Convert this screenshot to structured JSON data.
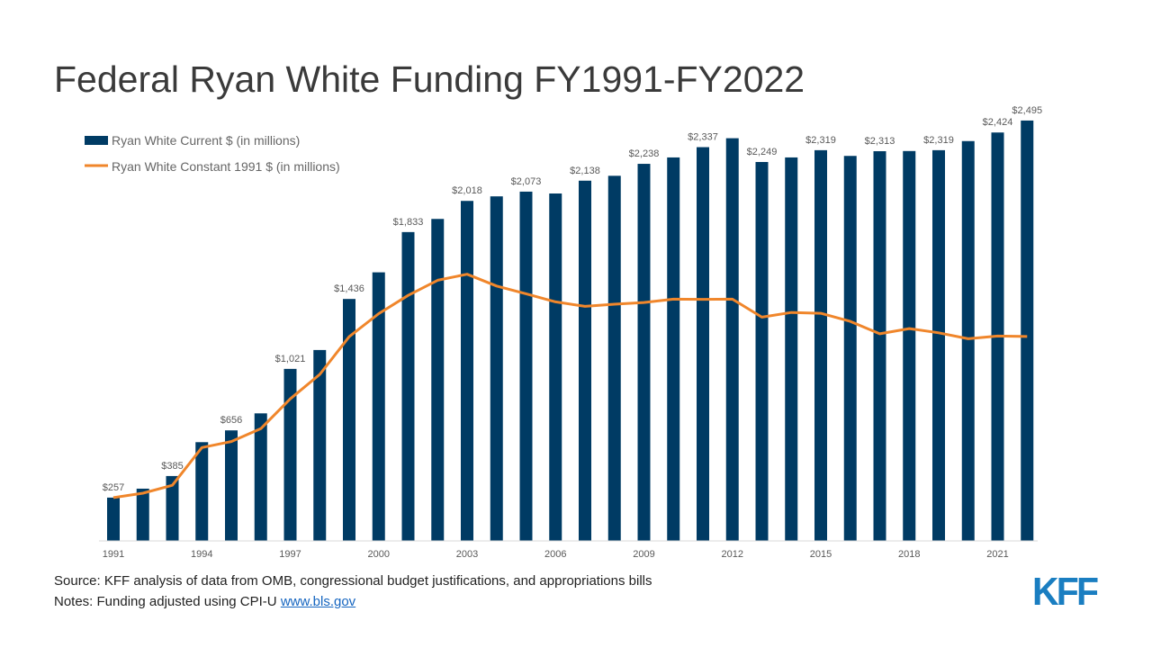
{
  "title": "Federal Ryan White Funding FY1991-FY2022",
  "source_text": "Source: KFF analysis of data from OMB, congressional budget justifications, and appropriations bills",
  "notes_prefix": "Notes: Funding adjusted using CPI-U ",
  "notes_link": "www.bls.gov",
  "logo_text": "KFF",
  "colors": {
    "bar": "#003b64",
    "line": "#f0862b",
    "logo": "#1a7ec1"
  },
  "chart_data": {
    "type": "bar",
    "categories": [
      "1991",
      "1992",
      "1993",
      "1994",
      "1995",
      "1996",
      "1997",
      "1998",
      "1999",
      "2000",
      "2001",
      "2002",
      "2003",
      "2004",
      "2005",
      "2006",
      "2007",
      "2008",
      "2009",
      "2010",
      "2011",
      "2012",
      "2013",
      "2014",
      "2015",
      "2016",
      "2017",
      "2018",
      "2019",
      "2020",
      "2021",
      "2022"
    ],
    "x_tick_labels": [
      "1991",
      "",
      "",
      "1994",
      "",
      "",
      "1997",
      "",
      "",
      "2000",
      "",
      "",
      "2003",
      "",
      "",
      "2006",
      "",
      "",
      "2009",
      "",
      "",
      "2012",
      "",
      "",
      "2015",
      "",
      "",
      "2018",
      "",
      "",
      "2021",
      ""
    ],
    "series": [
      {
        "name": "Ryan White Current $ (in millions)",
        "type": "bar",
        "values": [
          257,
          310,
          385,
          586,
          656,
          757,
          1021,
          1133,
          1436,
          1594,
          1833,
          1911,
          2018,
          2045,
          2073,
          2062,
          2138,
          2167,
          2238,
          2276,
          2337,
          2390,
          2249,
          2276,
          2319,
          2285,
          2313,
          2314,
          2319,
          2373,
          2424,
          2495
        ]
      },
      {
        "name": "Ryan White Constant 1991 $ (in millions)",
        "type": "line",
        "values": [
          257,
          283,
          330,
          554,
          590,
          666,
          843,
          988,
          1212,
          1349,
          1457,
          1547,
          1583,
          1513,
          1467,
          1419,
          1392,
          1405,
          1415,
          1435,
          1434,
          1435,
          1328,
          1356,
          1351,
          1303,
          1229,
          1260,
          1235,
          1200,
          1216,
          1213
        ]
      }
    ],
    "data_labels": [
      {
        "index": 0,
        "text": "$257"
      },
      {
        "index": 2,
        "text": "$385"
      },
      {
        "index": 4,
        "text": "$656"
      },
      {
        "index": 6,
        "text": "$1,021"
      },
      {
        "index": 8,
        "text": "$1,436"
      },
      {
        "index": 10,
        "text": "$1,833"
      },
      {
        "index": 12,
        "text": "$2,018"
      },
      {
        "index": 14,
        "text": "$2,073"
      },
      {
        "index": 16,
        "text": "$2,138"
      },
      {
        "index": 18,
        "text": "$2,238"
      },
      {
        "index": 20,
        "text": "$2,337"
      },
      {
        "index": 22,
        "text": "$2,249"
      },
      {
        "index": 24,
        "text": "$2,319"
      },
      {
        "index": 26,
        "text": "$2,313"
      },
      {
        "index": 28,
        "text": "$2,319"
      },
      {
        "index": 30,
        "text": "$2,424"
      },
      {
        "index": 31,
        "text": "$2,495"
      }
    ],
    "ylim": [
      0,
      2500
    ],
    "grid": false,
    "legend": "top-left"
  }
}
